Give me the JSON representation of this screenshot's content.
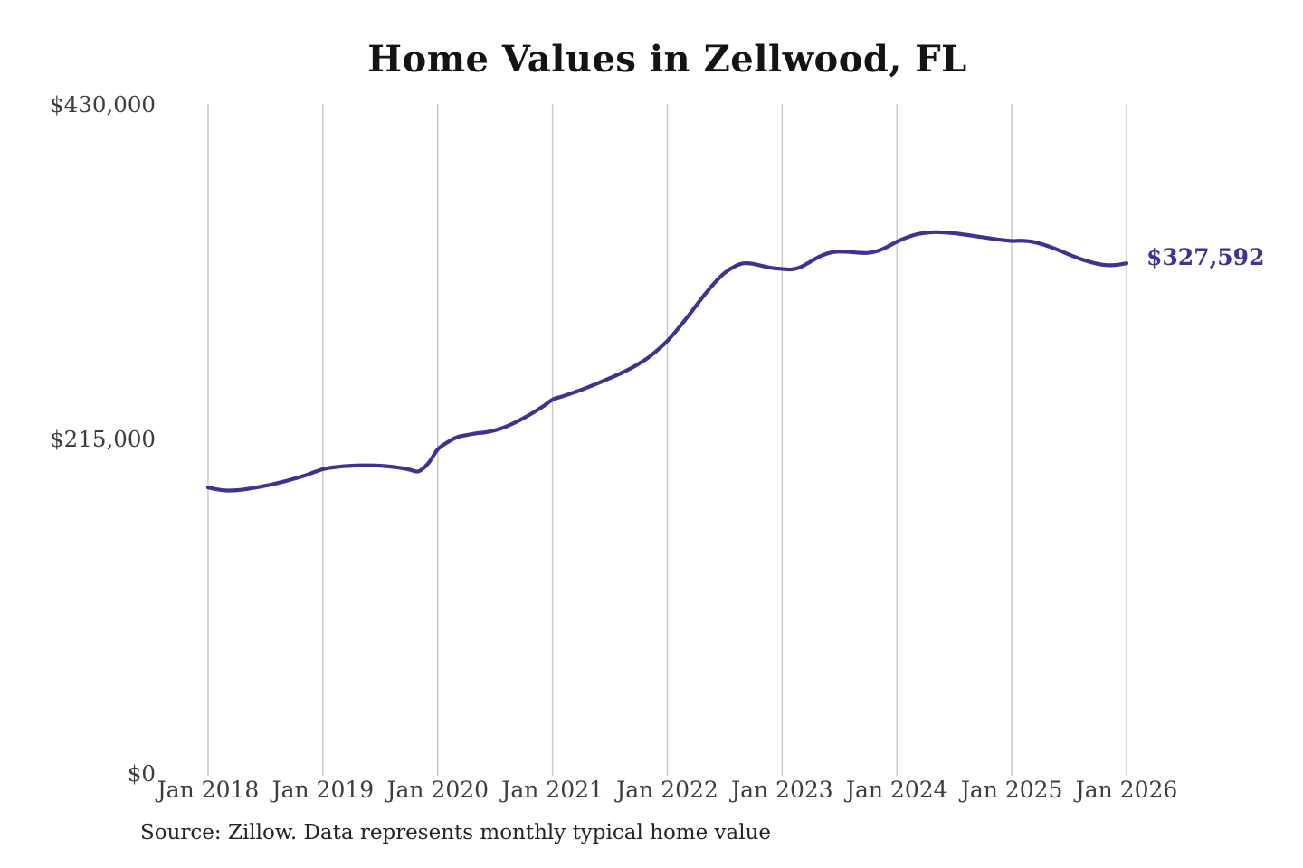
{
  "chart_data": {
    "type": "line",
    "title": "Home Values in Zellwood, FL",
    "end_label": "$327,592",
    "latest_value": 327592,
    "source_note": "Source: Zillow. Data represents monthly typical home value",
    "x_tick_labels": [
      "Jan 2018",
      "Jan 2019",
      "Jan 2020",
      "Jan 2021",
      "Jan 2022",
      "Jan 2023",
      "Jan 2024",
      "Jan 2025",
      "Jan 2026"
    ],
    "y_ticks": [
      {
        "value": 0,
        "label": "$0"
      },
      {
        "value": 215000,
        "label": "$215,000"
      },
      {
        "value": 430000,
        "label": "$430,000"
      }
    ],
    "ylim": [
      0,
      430000
    ],
    "grid": "vertical-only",
    "legend": "none",
    "series": [
      {
        "name": "Monthly typical home value",
        "start_month": "2018-01",
        "end_month": "2026-01",
        "interval": "monthly",
        "values": [
          183500,
          182300,
          181600,
          181800,
          182500,
          183500,
          184700,
          186000,
          187500,
          189200,
          191000,
          193200,
          195300,
          196400,
          197100,
          197500,
          197700,
          197700,
          197500,
          197000,
          196200,
          195100,
          193900,
          199000,
          208000,
          212500,
          215800,
          217200,
          218300,
          219000,
          220300,
          222300,
          225000,
          228200,
          231700,
          235600,
          240000,
          242000,
          244100,
          246300,
          248700,
          251200,
          253800,
          256500,
          259500,
          263000,
          267000,
          272000,
          277700,
          284700,
          292300,
          300300,
          308200,
          315500,
          321500,
          325500,
          327600,
          327200,
          325800,
          324600,
          324000,
          323700,
          325400,
          328800,
          332200,
          334400,
          335100,
          334900,
          334400,
          334300,
          335600,
          338200,
          341500,
          344100,
          346100,
          347200,
          347600,
          347400,
          346900,
          346100,
          345200,
          344300,
          343400,
          342600,
          342000,
          342100,
          341600,
          340200,
          338200,
          335800,
          333200,
          330800,
          328800,
          327200,
          326400,
          326600,
          327592
        ]
      }
    ],
    "colors": {
      "line": "#3b3590",
      "end_label": "#3b3590",
      "grid": "#c9c9c9",
      "axis_text": "#3d3d3d",
      "title_text": "#141414",
      "source_text": "#232323",
      "background": "#ffffff"
    }
  }
}
